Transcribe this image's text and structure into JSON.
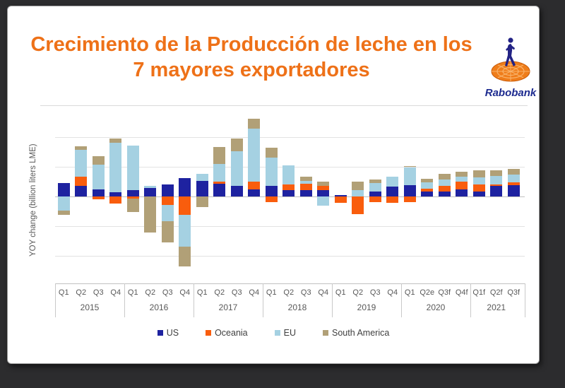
{
  "header": {
    "title_line1": "Crecimiento de la Producción de leche en los",
    "title_line2": "7 mayores exportadores",
    "logo_text": "Rabobank",
    "title_color": "#ee7118",
    "logo_text_color": "#1c2a8f"
  },
  "chart_data": {
    "type": "bar",
    "stacked": true,
    "title": "Crecimiento de la Producción de leche en los 7 mayores exportadores",
    "xlabel": "",
    "ylabel": "YOY change (billion liters LME)",
    "ylim": [
      -2.93,
      2.67
    ],
    "gridlines": [
      -2,
      -1,
      0,
      1,
      2
    ],
    "grid": true,
    "legend_position": "bottom",
    "groups": [
      {
        "year": "2015",
        "quarters": [
          "Q1",
          "Q2",
          "Q3",
          "Q4"
        ]
      },
      {
        "year": "2016",
        "quarters": [
          "Q1",
          "Q2",
          "Q3",
          "Q4"
        ]
      },
      {
        "year": "2017",
        "quarters": [
          "Q1",
          "Q2",
          "Q3",
          "Q4"
        ]
      },
      {
        "year": "2018",
        "quarters": [
          "Q1",
          "Q2",
          "Q3",
          "Q4"
        ]
      },
      {
        "year": "2019",
        "quarters": [
          "Q1",
          "Q2",
          "Q3",
          "Q4"
        ]
      },
      {
        "year": "2020",
        "quarters": [
          "Q1",
          "Q2e",
          "Q3f",
          "Q4f"
        ]
      },
      {
        "year": "2021",
        "quarters": [
          "Q1f",
          "Q2f",
          "Q3f"
        ]
      }
    ],
    "series": [
      {
        "name": "US",
        "color": "#1e22a0",
        "values": [
          0.45,
          0.37,
          0.24,
          0.14,
          0.21,
          0.29,
          0.41,
          0.62,
          0.53,
          0.43,
          0.37,
          0.24,
          0.37,
          0.21,
          0.21,
          0.21,
          0.05,
          0.0,
          0.17,
          0.33,
          0.39,
          0.16,
          0.17,
          0.24,
          0.17,
          0.35,
          0.39
        ]
      },
      {
        "name": "Oceania",
        "color": "#f95d0d",
        "values": [
          0.0,
          0.29,
          -0.1,
          -0.24,
          -0.07,
          0.0,
          -0.28,
          -0.61,
          0.0,
          0.08,
          0.0,
          0.25,
          -0.2,
          0.2,
          0.21,
          0.16,
          -0.22,
          -0.6,
          -0.2,
          -0.22,
          -0.18,
          0.11,
          0.2,
          0.27,
          0.24,
          0.06,
          0.08
        ]
      },
      {
        "name": "EU",
        "color": "#a5d1e2",
        "values": [
          -0.48,
          0.92,
          0.83,
          1.68,
          1.5,
          0.07,
          -0.56,
          -1.07,
          0.24,
          0.58,
          1.16,
          1.8,
          0.93,
          0.63,
          0.1,
          -0.3,
          0.0,
          0.21,
          0.28,
          0.35,
          0.6,
          0.21,
          0.2,
          0.16,
          0.24,
          0.28,
          0.26
        ]
      },
      {
        "name": "South America",
        "color": "#b1a077",
        "values": [
          -0.14,
          0.11,
          0.28,
          0.13,
          -0.45,
          -1.21,
          -0.71,
          -0.67,
          -0.35,
          0.57,
          0.43,
          0.33,
          0.35,
          0.0,
          0.16,
          0.12,
          0.0,
          0.29,
          0.12,
          0.0,
          0.04,
          0.11,
          0.2,
          0.16,
          0.24,
          0.2,
          0.21
        ]
      }
    ]
  }
}
